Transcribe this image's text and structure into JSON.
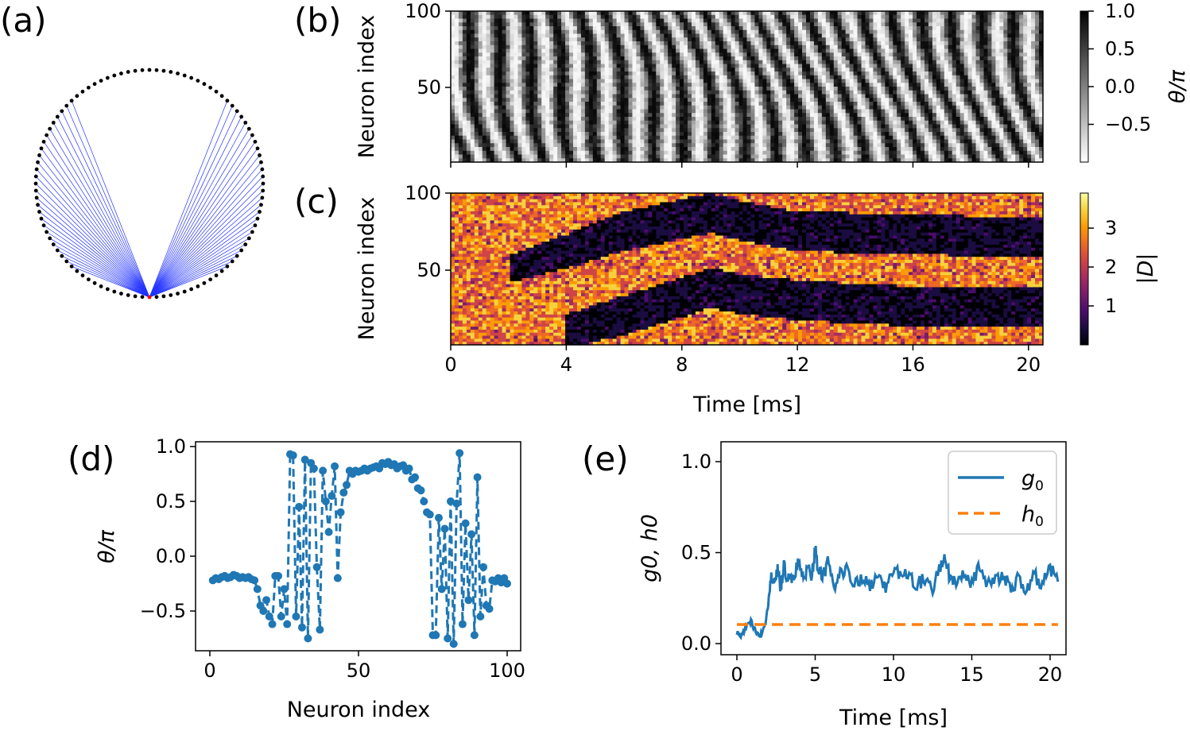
{
  "colors": {
    "circle_dot": "#000000",
    "center_dot": "#ff0000",
    "connection": "#2233ff",
    "g0_line": "#1f77b4",
    "h0_line": "#ff7f0e",
    "inferno": [
      "#000004",
      "#1b0c41",
      "#4a0c6b",
      "#781c6d",
      "#a52c60",
      "#cf4446",
      "#ed6925",
      "#fb9b06",
      "#f7d13d",
      "#fcffa4"
    ]
  },
  "chart_data": [
    {
      "panel": "(a)",
      "type": "network-ring",
      "n_neurons": 100,
      "selected_neuron": 0,
      "connected_offsets": [
        12,
        38
      ]
    },
    {
      "panel": "(b)",
      "type": "heatmap",
      "ylabel": "Neuron index",
      "xlim": [
        0,
        20.5
      ],
      "ylim": [
        1,
        100
      ],
      "yticks": [
        "100",
        "50"
      ],
      "colormap": "gray_r",
      "colorbar": {
        "label": "θ/π",
        "ticks": [
          "1.0",
          "0.5",
          "0.0",
          "−0.5"
        ],
        "range": [
          -1,
          1
        ]
      }
    },
    {
      "panel": "(c)",
      "type": "heatmap",
      "ylabel": "Neuron index",
      "xlabel": "Time [ms]",
      "xlim": [
        0,
        20.5
      ],
      "xticks": [
        "0",
        "4",
        "8",
        "12",
        "16",
        "20"
      ],
      "yticks": [
        "100",
        "50"
      ],
      "colormap": "inferno",
      "colorbar": {
        "label": "|D|",
        "ticks": [
          "3",
          "2",
          "1"
        ],
        "range": [
          0,
          3.9
        ]
      },
      "dark_bands": [
        {
          "t": [
            2,
            4,
            6,
            8,
            9,
            10,
            12,
            14,
            16,
            18,
            20.5
          ],
          "n": [
            50,
            62,
            75,
            83,
            87,
            82,
            75,
            74,
            73,
            72,
            72
          ]
        },
        {
          "t": [
            4,
            6,
            8,
            9,
            10,
            12,
            14,
            16,
            18,
            20.5
          ],
          "n": [
            10,
            20,
            32,
            38,
            34,
            30,
            28,
            26,
            26,
            25
          ]
        }
      ]
    },
    {
      "panel": "(d)",
      "type": "line",
      "style": "dashed-with-markers",
      "xlabel": "Neuron index",
      "ylabel": "θ/π",
      "xlim": [
        -5,
        105
      ],
      "ylim": [
        -0.9,
        1.0
      ],
      "xticks": [
        "0",
        "50",
        "100"
      ],
      "yticks": [
        "1.0",
        "0.5",
        "0.0",
        "−0.5"
      ],
      "x": [
        1,
        2,
        3,
        4,
        5,
        6,
        7,
        8,
        9,
        10,
        11,
        12,
        13,
        14,
        15,
        16,
        17,
        18,
        19,
        20,
        21,
        22,
        23,
        24,
        25,
        26,
        27,
        28,
        29,
        30,
        31,
        32,
        33,
        34,
        35,
        36,
        37,
        38,
        39,
        40,
        41,
        42,
        43,
        44,
        45,
        46,
        47,
        48,
        49,
        50,
        51,
        52,
        53,
        54,
        55,
        56,
        57,
        58,
        59,
        60,
        61,
        62,
        63,
        64,
        65,
        66,
        67,
        68,
        69,
        70,
        71,
        72,
        73,
        74,
        75,
        76,
        77,
        78,
        79,
        80,
        81,
        82,
        83,
        84,
        85,
        86,
        87,
        88,
        89,
        90,
        91,
        92,
        93,
        94,
        95,
        96,
        97,
        98,
        99,
        100
      ],
      "values": [
        -0.22,
        -0.2,
        -0.21,
        -0.19,
        -0.18,
        -0.2,
        -0.19,
        -0.17,
        -0.18,
        -0.2,
        -0.19,
        -0.2,
        -0.19,
        -0.21,
        -0.22,
        -0.3,
        -0.45,
        -0.5,
        -0.4,
        -0.55,
        -0.62,
        -0.18,
        -0.18,
        -0.55,
        -0.3,
        -0.62,
        0.93,
        0.92,
        -0.55,
        0.45,
        -0.65,
        0.88,
        -0.75,
        0.85,
        0.8,
        -0.1,
        -0.67,
        0.78,
        0.5,
        0.22,
        0.55,
        0.82,
        -0.2,
        0.4,
        0.58,
        0.65,
        0.78,
        0.75,
        0.78,
        0.77,
        0.78,
        0.8,
        0.78,
        0.8,
        0.81,
        0.82,
        0.8,
        0.85,
        0.84,
        0.86,
        0.83,
        0.84,
        0.8,
        0.82,
        0.83,
        0.78,
        0.8,
        0.7,
        0.72,
        0.62,
        0.6,
        0.5,
        0.4,
        0.38,
        -0.72,
        -0.72,
        0.35,
        -0.3,
        0.25,
        -0.75,
        0.5,
        -0.8,
        0.48,
        0.94,
        -0.62,
        0.3,
        -0.4,
        0.2,
        -0.72,
        0.72,
        -0.55,
        -0.1,
        -0.45,
        -0.48,
        -0.22,
        -0.23,
        -0.2,
        -0.24,
        -0.2,
        -0.25
      ]
    },
    {
      "panel": "(e)",
      "type": "line",
      "xlabel": "Time [ms]",
      "ylabel": "g0, h0",
      "xlim": [
        -1,
        21.5
      ],
      "ylim": [
        -0.1,
        1.1
      ],
      "xticks": [
        "0",
        "5",
        "10",
        "15",
        "20"
      ],
      "yticks": [
        "1.0",
        "0.5",
        "0.0"
      ],
      "series": [
        {
          "name": "g0",
          "legend_main": "g",
          "legend_sub": "0",
          "style": "solid",
          "x": [
            0,
            0.3,
            0.6,
            0.9,
            1.2,
            1.5,
            1.8,
            2.0,
            2.2,
            2.4,
            2.6,
            2.8,
            3.0,
            3.3,
            3.6,
            3.9,
            4.2,
            4.5,
            4.8,
            5.0,
            5.2,
            5.5,
            5.8,
            6.2,
            6.6,
            7.0,
            7.5,
            8.0,
            8.5,
            9.0,
            9.5,
            10.0,
            10.5,
            11.0,
            11.5,
            12.0,
            12.5,
            13.0,
            13.3,
            13.6,
            14.0,
            14.5,
            15.0,
            15.5,
            16.0,
            16.5,
            17.0,
            17.5,
            18.0,
            18.5,
            19.0,
            19.5,
            20.0,
            20.5
          ],
          "values": [
            0.06,
            0.04,
            0.1,
            0.12,
            0.07,
            0.04,
            0.1,
            0.22,
            0.38,
            0.34,
            0.4,
            0.3,
            0.42,
            0.35,
            0.38,
            0.44,
            0.36,
            0.4,
            0.38,
            0.52,
            0.4,
            0.36,
            0.44,
            0.3,
            0.38,
            0.42,
            0.34,
            0.36,
            0.32,
            0.38,
            0.3,
            0.42,
            0.36,
            0.38,
            0.32,
            0.36,
            0.3,
            0.42,
            0.48,
            0.36,
            0.32,
            0.38,
            0.34,
            0.42,
            0.32,
            0.34,
            0.38,
            0.3,
            0.36,
            0.28,
            0.38,
            0.32,
            0.42,
            0.34
          ]
        },
        {
          "name": "h0",
          "legend_main": "h",
          "legend_sub": "0",
          "style": "dashed",
          "x": [
            0,
            20.5
          ],
          "values": [
            0.105,
            0.105
          ]
        }
      ]
    }
  ],
  "panels": {
    "a": "(a)",
    "b": "(b)",
    "c": "(c)",
    "d": "(d)",
    "e": "(e)"
  }
}
